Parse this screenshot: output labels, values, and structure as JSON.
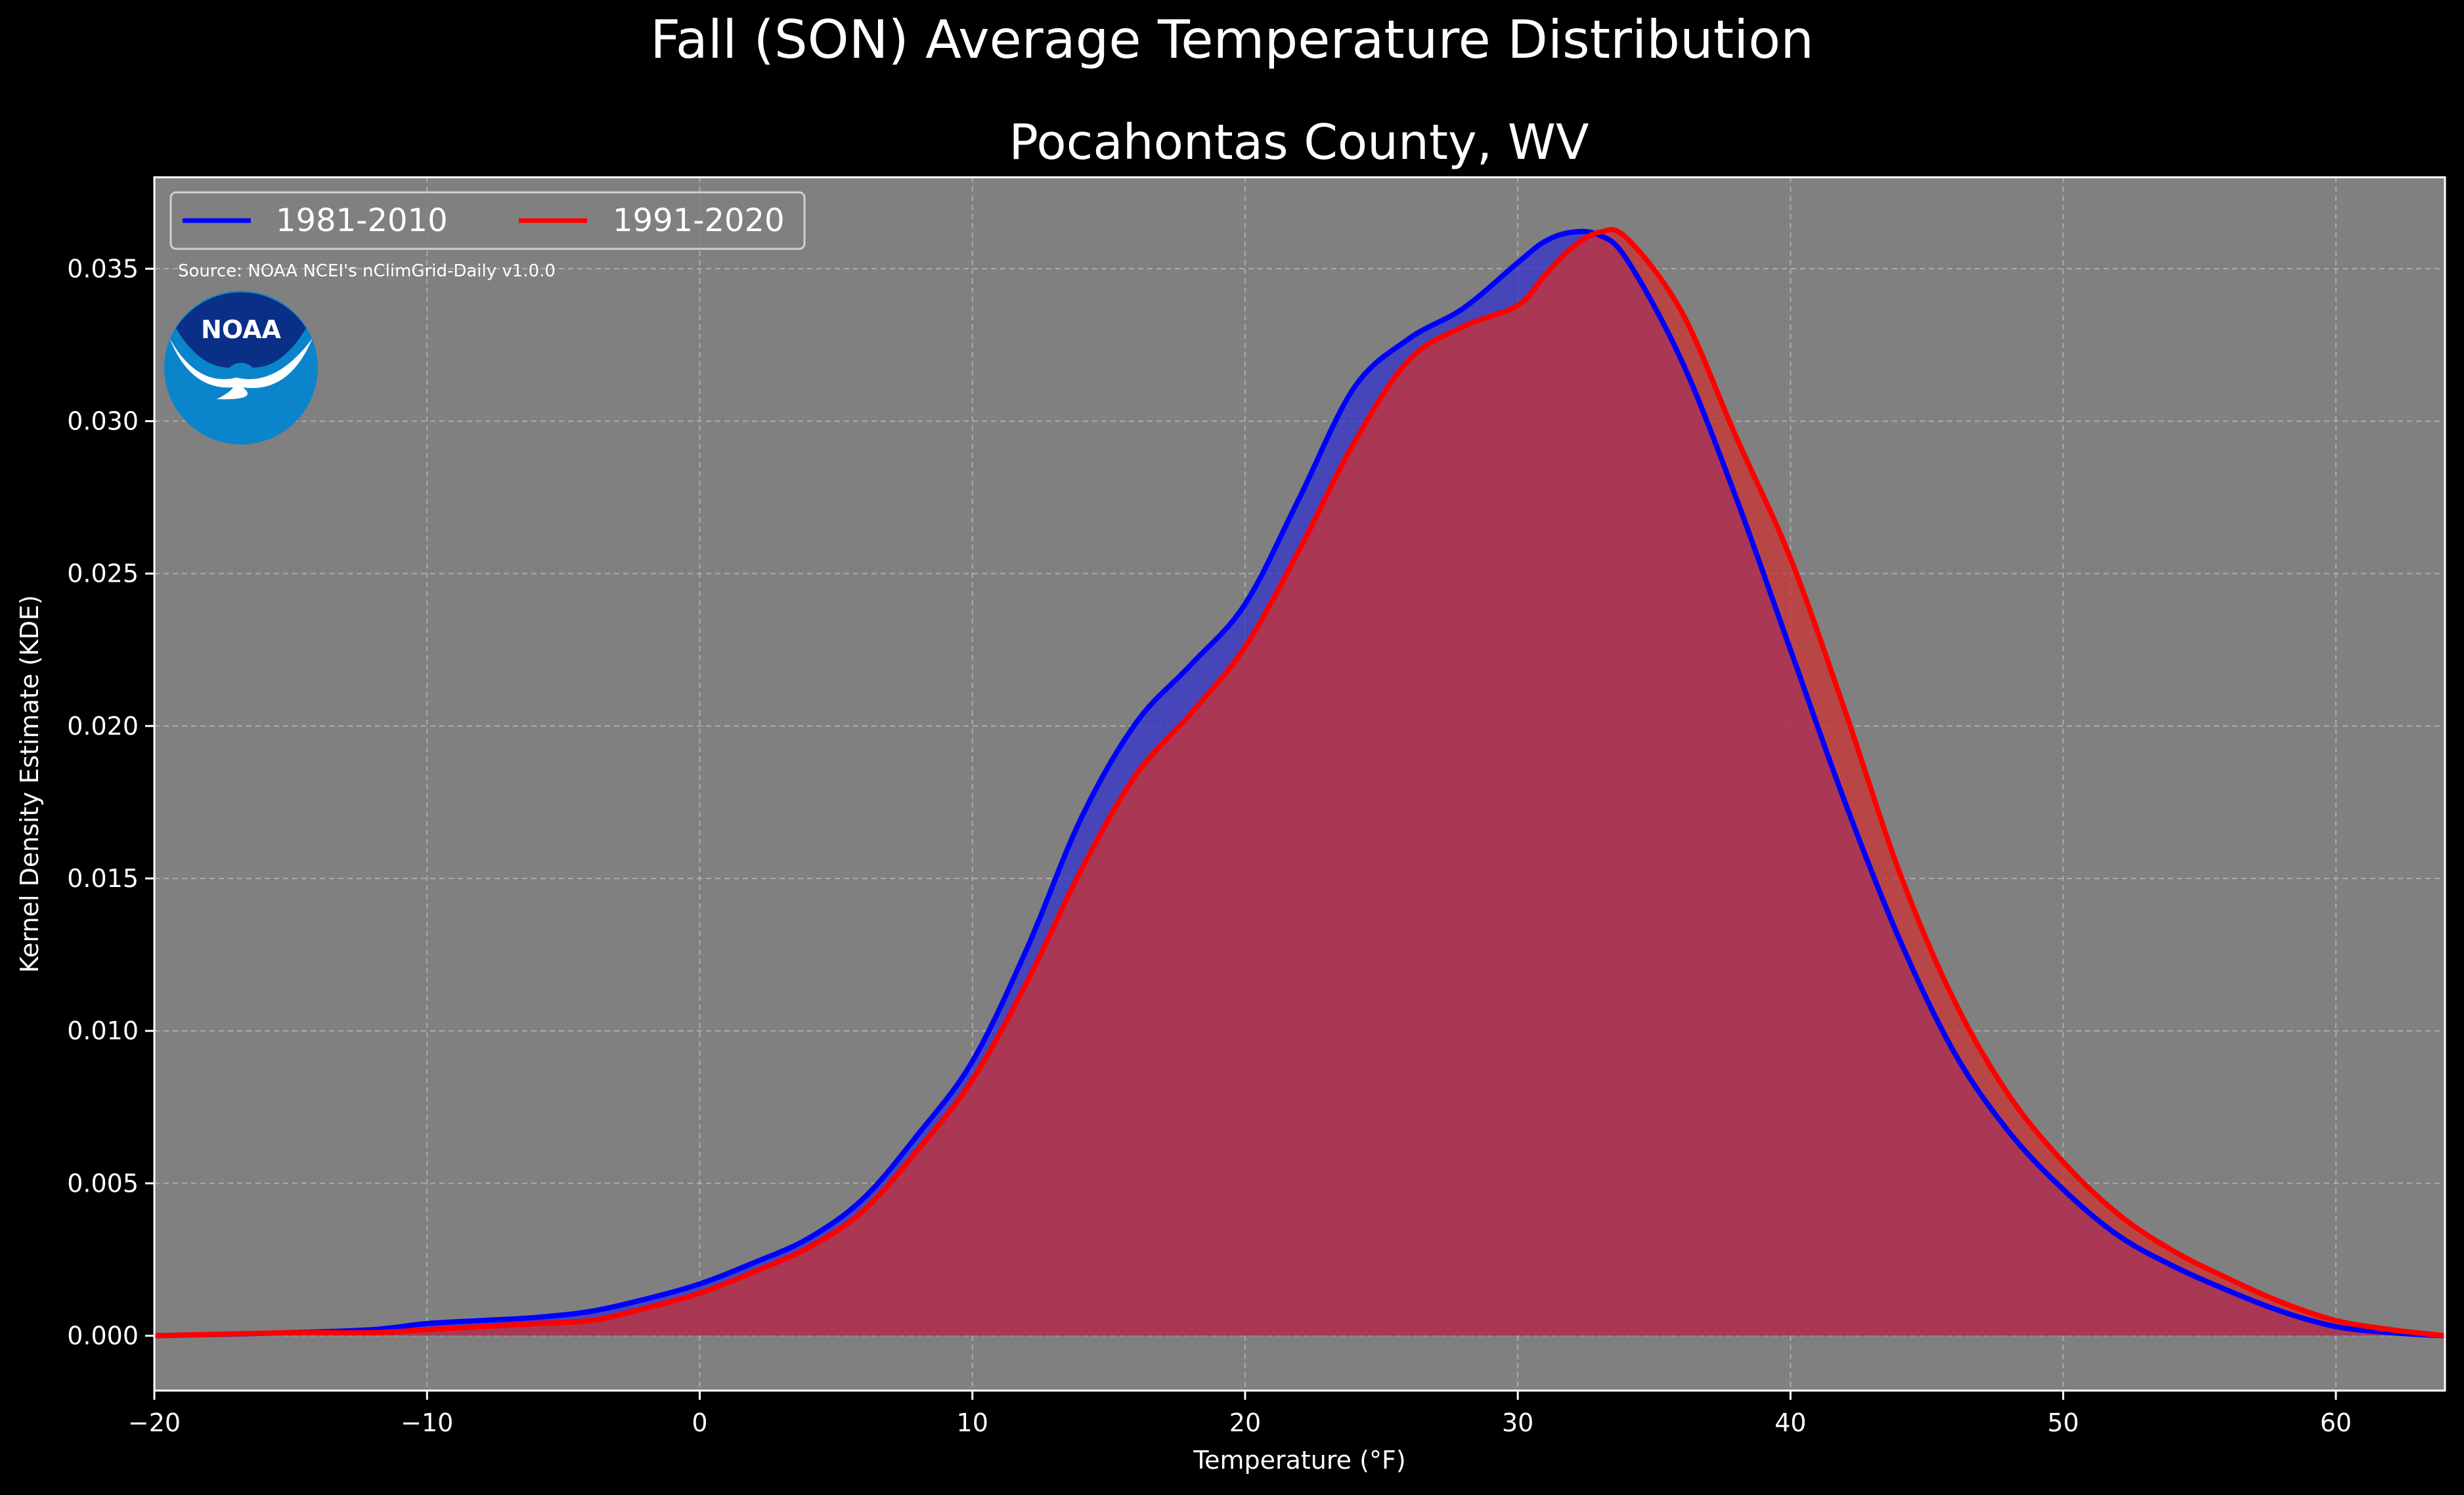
{
  "chart_data": {
    "type": "area",
    "title": "Fall (SON) Average Temperature Distribution",
    "subtitle": "Pocahontas County, WV",
    "xlabel": "Temperature (°F)",
    "ylabel": "Kernel Density Estimate (KDE)",
    "xlim": [
      -20,
      64
    ],
    "ylim": [
      -0.0018,
      0.038
    ],
    "xticks": [
      -20,
      -10,
      0,
      10,
      20,
      30,
      40,
      50,
      60
    ],
    "xtick_labels": [
      "−20",
      "−10",
      "0",
      "10",
      "20",
      "30",
      "40",
      "50",
      "60"
    ],
    "yticks": [
      0.0,
      0.005,
      0.01,
      0.015,
      0.02,
      0.025,
      0.03,
      0.035
    ],
    "ytick_labels": [
      "0.000",
      "0.005",
      "0.010",
      "0.015",
      "0.020",
      "0.025",
      "0.030",
      "0.035"
    ],
    "grid": true,
    "legend_placement": "top-left",
    "annotation": "Source: NOAA NCEI's nClimGrid-Daily v1.0.0",
    "plot_background": "#808080",
    "figure_background": "#000000",
    "series": [
      {
        "name": "1981-2010",
        "color": "#0000ff",
        "fill_color": "#3333cc",
        "x": [
          -20,
          -15,
          -12,
          -10,
          -8,
          -6,
          -4,
          -2,
          0,
          2,
          4,
          6,
          8,
          10,
          12,
          14,
          16,
          18,
          20,
          22,
          24,
          26,
          28,
          30,
          31,
          32,
          33,
          34,
          36,
          38,
          40,
          42,
          44,
          46,
          48,
          50,
          52,
          54,
          56,
          58,
          60,
          62,
          64
        ],
        "y": [
          0.0,
          0.0001,
          0.0002,
          0.0004,
          0.0005,
          0.0006,
          0.0008,
          0.0012,
          0.0017,
          0.0024,
          0.0032,
          0.0045,
          0.0066,
          0.009,
          0.0127,
          0.017,
          0.0201,
          0.022,
          0.024,
          0.0275,
          0.0311,
          0.0327,
          0.0337,
          0.0352,
          0.0359,
          0.0362,
          0.0361,
          0.0353,
          0.032,
          0.0275,
          0.0225,
          0.0175,
          0.013,
          0.0093,
          0.0067,
          0.0048,
          0.0033,
          0.0023,
          0.0015,
          0.0008,
          0.0003,
          0.0001,
          0.0
        ]
      },
      {
        "name": "1991-2020",
        "color": "#ff0000",
        "fill_color": "#cc3333",
        "x": [
          -20,
          -15,
          -12,
          -10,
          -8,
          -6,
          -4,
          -2,
          0,
          2,
          4,
          6,
          8,
          10,
          12,
          14,
          16,
          18,
          20,
          22,
          24,
          26,
          28,
          30,
          31,
          32,
          33,
          34,
          36,
          38,
          40,
          42,
          44,
          46,
          48,
          50,
          52,
          54,
          56,
          58,
          60,
          62,
          64
        ],
        "y": [
          0.0,
          0.0001,
          0.0001,
          0.0002,
          0.0003,
          0.0004,
          0.0005,
          0.0009,
          0.0014,
          0.0021,
          0.0029,
          0.0041,
          0.0061,
          0.0084,
          0.0116,
          0.0153,
          0.0184,
          0.0204,
          0.0226,
          0.0258,
          0.0293,
          0.032,
          0.0331,
          0.0338,
          0.0348,
          0.0357,
          0.0362,
          0.036,
          0.0336,
          0.0295,
          0.0255,
          0.0205,
          0.0152,
          0.011,
          0.0079,
          0.0057,
          0.004,
          0.0028,
          0.0019,
          0.0011,
          0.0005,
          0.0002,
          0.0
        ]
      }
    ]
  },
  "logo": {
    "text": "NOAA",
    "name": "noaa-logo"
  }
}
